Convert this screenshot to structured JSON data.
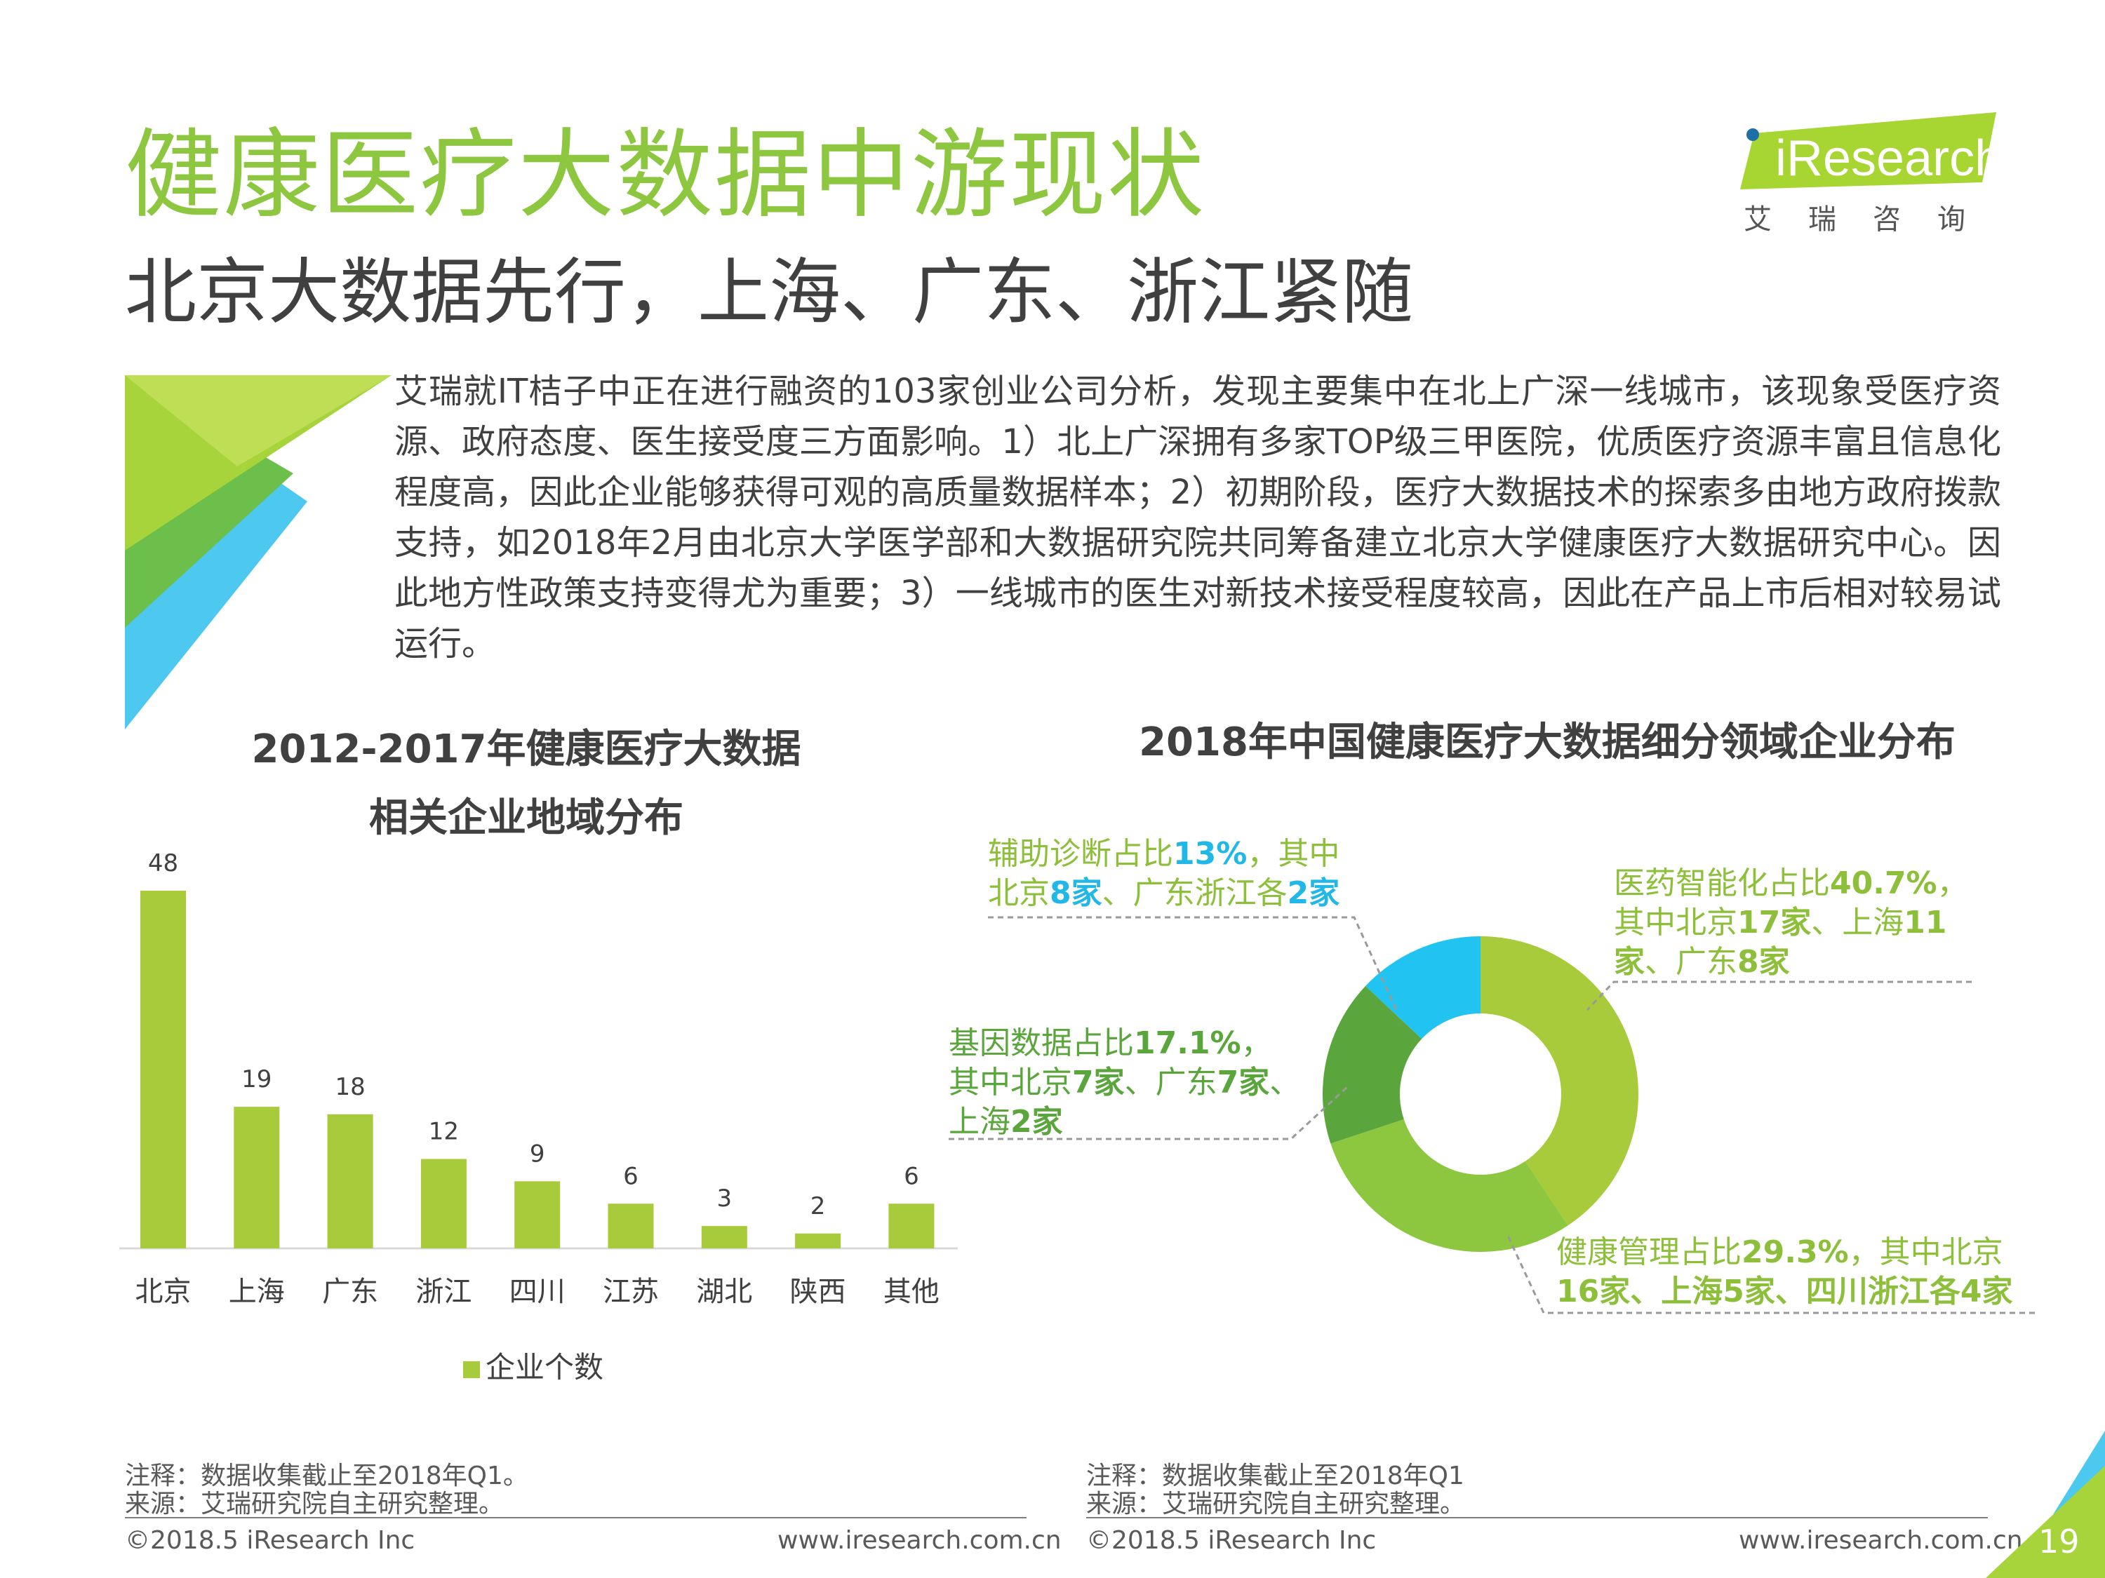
{
  "header": {
    "title": "健康医疗大数据中游现状",
    "subtitle": "北京大数据先行，上海、广东、浙江紧随"
  },
  "logo": {
    "wordmark": "iResearch",
    "chinese": "艾瑞咨询"
  },
  "intro": "艾瑞就IT桔子中正在进行融资的103家创业公司分析，发现主要集中在北上广深一线城市，该现象受医疗资源、政府态度、医生接受度三方面影响。1）北上广深拥有多家TOP级三甲医院，优质医疗资源丰富且信息化程度高，因此企业能够获得可观的高质量数据样本；2）初期阶段，医疗大数据技术的探索多由地方政府拨款支持，如2018年2月由北京大学医学部和大数据研究院共同筹备建立北京大学健康医疗大数据研究中心。因此地方性政策支持变得尤为重要；3）一线城市的医生对新技术接受程度较高，因此在产品上市后相对较易试运行。",
  "colors": {
    "accent_green": "#8dc63f",
    "bar_green": "#a7cb3a",
    "donut_light": "#a7cb3a",
    "donut_mid": "#8dc63f",
    "donut_dark": "#5aa63c",
    "donut_blue": "#21c4f0"
  },
  "chart_data": [
    {
      "type": "bar",
      "title_line1": "2012-2017年健康医疗大数据",
      "title_line2": "相关企业地域分布",
      "categories": [
        "北京",
        "上海",
        "广东",
        "浙江",
        "四川",
        "江苏",
        "湖北",
        "陕西",
        "其他"
      ],
      "series": [
        {
          "name": "企业个数",
          "values": [
            48,
            19,
            18,
            12,
            9,
            6,
            3,
            2,
            6
          ]
        }
      ],
      "ylim": [
        0,
        48
      ],
      "legend": "bottom",
      "grid": false
    },
    {
      "type": "pie",
      "title": "2018年中国健康医疗大数据细分领域企业分布",
      "hole": true,
      "slices": [
        {
          "label": "医药智能化",
          "value": 40.7,
          "color": "#a7cb3a"
        },
        {
          "label": "健康管理",
          "value": 29.3,
          "color": "#8dc63f"
        },
        {
          "label": "基因数据",
          "value": 17.1,
          "color": "#5aa63c"
        },
        {
          "label": "辅助诊断",
          "value": 13,
          "color": "#21c4f0"
        }
      ],
      "annotations": {
        "diag": {
          "l1a": "辅助诊断占比",
          "l1b": "13%",
          "l1c": "，其中",
          "l2a": "北京",
          "l2b": "8家",
          "l2c": "、广东浙江各",
          "l2d": "2家"
        },
        "pharma": {
          "l1a": "医药智能化占比",
          "l1b": "40.7%",
          "l1c": "，",
          "l2a": "其中北京",
          "l2b": "17家",
          "l2c": "、上海",
          "l2d": "11",
          "l3a": "家",
          "l3b": "、广东",
          "l3c": "8家"
        },
        "gene": {
          "l1a": "基因数据占比",
          "l1b": "17.1%",
          "l1c": "，",
          "l2a": "其中北京",
          "l2b": "7家",
          "l2c": "、广东",
          "l2d": "7家",
          "l2e": "、",
          "l3a": "上海",
          "l3b": "2家"
        },
        "health": {
          "l1a": "健康管理占比",
          "l1b": "29.3%",
          "l1c": "，其中北京",
          "l2a": "16家",
          "l2b": "、上海",
          "l2c": "5家",
          "l2d": "、四川浙江各",
          "l2e": "4家"
        }
      }
    }
  ],
  "footer": {
    "left": {
      "note": "注释：数据收集截止至2018年Q1。",
      "source": "来源：艾瑞研究院自主研究整理。",
      "copyright": "©2018.5 iResearch Inc",
      "url": "www.iresearch.com.cn"
    },
    "right": {
      "note": "注释：数据收集截止至2018年Q1",
      "source": "来源：艾瑞研究院自主研究整理。",
      "copyright": "©2018.5 iResearch Inc",
      "url": "www.iresearch.com.cn"
    },
    "page_number": "19"
  }
}
